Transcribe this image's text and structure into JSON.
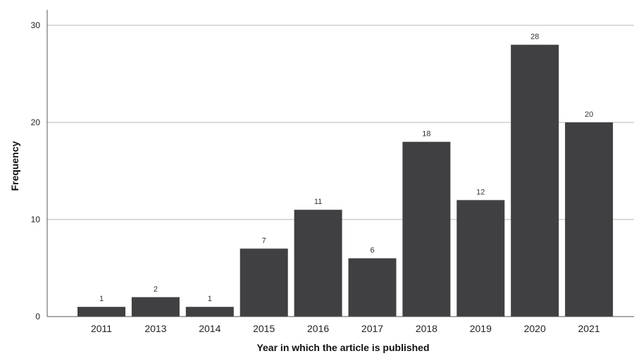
{
  "chart_data": {
    "type": "bar",
    "categories": [
      "2011",
      "2013",
      "2014",
      "2015",
      "2016",
      "2017",
      "2018",
      "2019",
      "2020",
      "2021"
    ],
    "values": [
      1,
      2,
      1,
      7,
      11,
      6,
      18,
      12,
      28,
      20
    ],
    "xlabel": "Year in which the article is published",
    "ylabel": "Frequency",
    "ylim": [
      0,
      30
    ],
    "yticks": [
      0,
      10,
      20,
      30
    ],
    "grid": true,
    "bar_color": "#404042",
    "grid_color": "#cfcfcf",
    "data_labels": true
  }
}
